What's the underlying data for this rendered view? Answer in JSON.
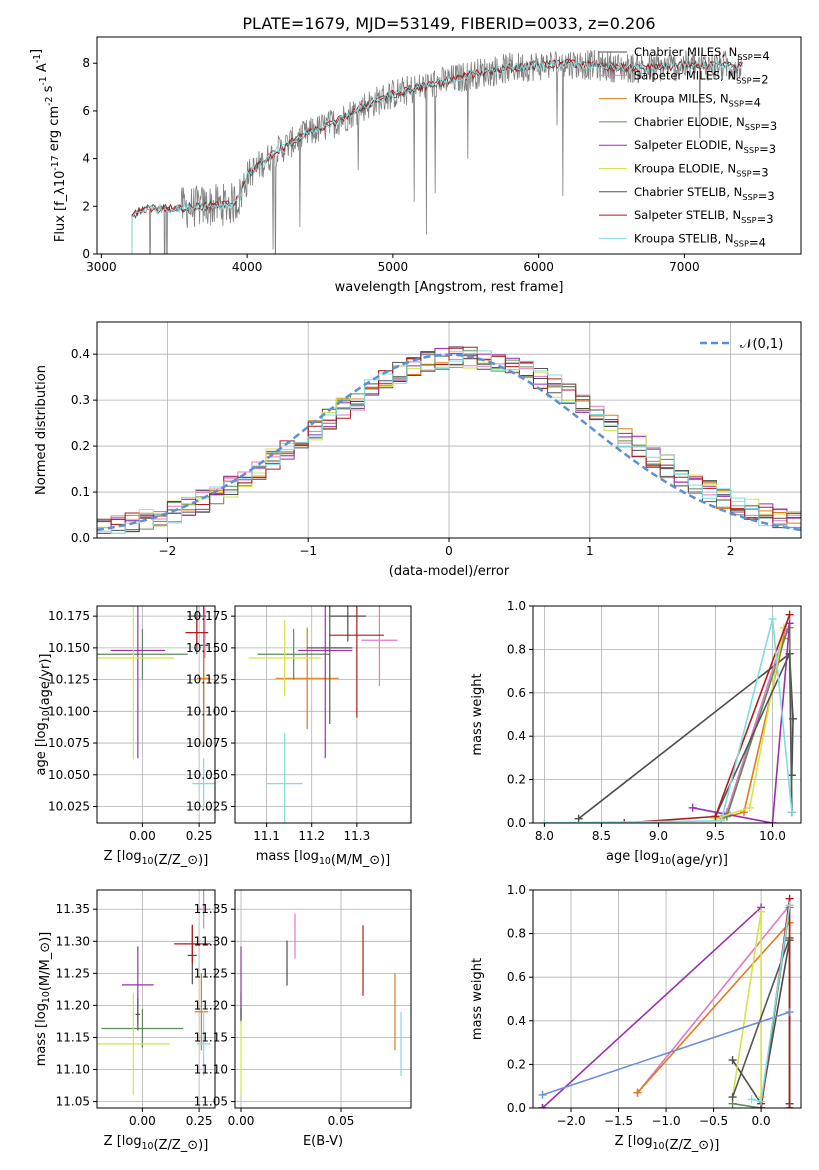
{
  "figure": {
    "title": "PLATE=1679, MJD=53149, FIBERID=0033, z=0.206",
    "models": [
      {
        "name": "Chabrier MILES, N$_{SSP}$=4",
        "color": "#4c4c4c"
      },
      {
        "name": "Salpeter MILES, N$_{SSP}$=2",
        "color": "#e377c2"
      },
      {
        "name": "Kroupa MILES, N$_{SSP}$=4",
        "color": "#e07b1b"
      },
      {
        "name": "Chabrier ELODIE, N$_{SSP}$=3",
        "color": "#5d8a5d"
      },
      {
        "name": "Salpeter ELODIE, N$_{SSP}$=3",
        "color": "#9b2fae"
      },
      {
        "name": "Kroupa ELODIE, N$_{SSP}$=3",
        "color": "#d6e34a"
      },
      {
        "name": "Chabrier STELIB, N$_{SSP}$=3",
        "color": "#555555"
      },
      {
        "name": "Salpeter STELIB, N$_{SSP}$=3",
        "color": "#b01c1c"
      },
      {
        "name": "Kroupa STELIB, N$_{SSP}$=4",
        "color": "#7fdde0"
      }
    ]
  },
  "chart_data": [
    {
      "id": "spectrum",
      "type": "line",
      "xlabel": "wavelength [Angstrom, rest frame]",
      "ylabel": "Flux [f$_\\lambda$10$^{-17}$ erg cm$^{-2}$ s$^{-1}$ A$^{-1}$]",
      "xlim": [
        2970,
        7800
      ],
      "ylim": [
        0,
        9.1
      ],
      "xticks": [
        3000,
        4000,
        5000,
        6000,
        7000
      ],
      "yticks": [
        0,
        2,
        4,
        6,
        8
      ],
      "continuum": {
        "x": [
          3210,
          3300,
          3500,
          3700,
          3900,
          3950,
          4000,
          4200,
          4400,
          4600,
          4800,
          5000,
          5200,
          5400,
          5600,
          5800,
          6000,
          6200,
          6400,
          6600,
          6800,
          7000,
          7200,
          7400
        ],
        "y": [
          1.6,
          1.9,
          1.9,
          2.0,
          2.1,
          2.4,
          3.3,
          4.3,
          5.0,
          5.5,
          6.2,
          6.7,
          7.0,
          7.3,
          7.6,
          7.8,
          7.9,
          8.0,
          7.9,
          7.8,
          7.8,
          7.9,
          7.9,
          7.9
        ]
      },
      "data_color": "#808080"
    },
    {
      "id": "residuals",
      "type": "line",
      "xlabel": "(data-model)/error",
      "ylabel": "Normed distribution",
      "xlim": [
        -2.5,
        2.5
      ],
      "ylim": [
        0,
        0.47
      ],
      "xticks": [
        -2,
        -1,
        0,
        1,
        2
      ],
      "yticks": [
        0.0,
        0.1,
        0.2,
        0.3,
        0.4
      ],
      "reference": {
        "name": "$\\mathcal{N}(0,1)$",
        "mu": 0,
        "sigma": 1,
        "color": "#5b8fd6"
      },
      "grid": true
    },
    {
      "id": "age-vs-Z",
      "type": "scatter",
      "xlabel": "Z [log$_{10}$(Z/Z$_\\odot$)]",
      "ylabel": "age  [log$_{10}$($age/yr$)]",
      "xlim": [
        -0.2,
        0.32
      ],
      "ylim": [
        10.012,
        10.183
      ],
      "xticks": [
        0.0,
        0.25
      ],
      "yticks": [
        10.025,
        10.05,
        10.075,
        10.1,
        10.125,
        10.15,
        10.175
      ],
      "points": [
        {
          "model": 0,
          "x": 0.27,
          "y": 10.152,
          "xerr": 0.02,
          "yerr": 0.08
        },
        {
          "model": 1,
          "x": 0.275,
          "y": 10.162,
          "xerr": 0.01,
          "yerr": 0.02
        },
        {
          "model": 2,
          "x": 0.27,
          "y": 10.126,
          "xerr": 0.03,
          "yerr": 0.05
        },
        {
          "model": 3,
          "x": 0.0,
          "y": 10.145,
          "xerr": 0.2,
          "yerr": 0.02
        },
        {
          "model": 4,
          "x": -0.02,
          "y": 10.148,
          "xerr": 0.12,
          "yerr": 0.085
        },
        {
          "model": 5,
          "x": -0.04,
          "y": 10.142,
          "xerr": 0.18,
          "yerr": 0.08
        },
        {
          "model": 6,
          "x": 0.24,
          "y": 10.175,
          "xerr": 0.04,
          "yerr": 0.03
        },
        {
          "model": 7,
          "x": 0.24,
          "y": 10.162,
          "xerr": 0.05,
          "yerr": 0.01
        },
        {
          "model": 8,
          "x": 0.27,
          "y": 10.043,
          "xerr": 0.05,
          "yerr": 0.02
        }
      ]
    },
    {
      "id": "age-vs-mass",
      "type": "scatter",
      "xlabel": "mass [log$_{10}$($M/M_\\odot$)]",
      "ylabel": "",
      "xlim": [
        11.03,
        11.42
      ],
      "ylim": [
        10.012,
        10.183
      ],
      "xticks": [
        11.1,
        11.2,
        11.3
      ],
      "yticks": [
        10.025,
        10.05,
        10.075,
        10.1,
        10.125,
        10.15,
        10.175
      ],
      "points": [
        {
          "model": 0,
          "x": 11.28,
          "y": 10.175,
          "xerr": 0.04,
          "yerr": 0.02
        },
        {
          "model": 1,
          "x": 11.35,
          "y": 10.156,
          "xerr": 0.04,
          "yerr": 0.036
        },
        {
          "model": 2,
          "x": 11.19,
          "y": 10.126,
          "xerr": 0.07,
          "yerr": 0.04
        },
        {
          "model": 3,
          "x": 11.16,
          "y": 10.145,
          "xerr": 0.08,
          "yerr": 0.02
        },
        {
          "model": 4,
          "x": 11.23,
          "y": 10.148,
          "xerr": 0.06,
          "yerr": 0.085
        },
        {
          "model": 5,
          "x": 11.14,
          "y": 10.142,
          "xerr": 0.08,
          "yerr": 0.03
        },
        {
          "model": 6,
          "x": 11.24,
          "y": 10.15,
          "xerr": 0.05,
          "yerr": 0.06
        },
        {
          "model": 7,
          "x": 11.3,
          "y": 10.16,
          "xerr": 0.06,
          "yerr": 0.065
        },
        {
          "model": 8,
          "x": 11.14,
          "y": 10.043,
          "xerr": 0.04,
          "yerr": 0.04
        }
      ]
    },
    {
      "id": "weight-vs-age",
      "type": "line",
      "xlabel": "age  [log$_{10}$($age/yr$)]",
      "ylabel": "mass weight",
      "xlim": [
        7.9,
        10.25
      ],
      "ylim": [
        0,
        1.0
      ],
      "xticks": [
        8.0,
        8.5,
        9.0,
        9.5,
        10.0
      ],
      "yticks": [
        0.0,
        0.2,
        0.4,
        0.6,
        0.8,
        1.0
      ],
      "grid": true,
      "series": [
        {
          "model": 0,
          "x": [
            8.3,
            10.15,
            10.18,
            10.17
          ],
          "y": [
            0.02,
            0.78,
            0.48,
            0.22
          ]
        },
        {
          "model": 1,
          "x": [
            9.6,
            10.12
          ],
          "y": [
            0.05,
            0.9
          ]
        },
        {
          "model": 2,
          "x": [
            9.55,
            9.75,
            10.1,
            10.15
          ],
          "y": [
            0.02,
            0.05,
            0.85,
            0.9
          ]
        },
        {
          "model": 3,
          "x": [
            9.6,
            10.15,
            10.17
          ],
          "y": [
            0.03,
            0.92,
            0.05
          ]
        },
        {
          "model": 4,
          "x": [
            9.3,
            10.0,
            10.15
          ],
          "y": [
            0.07,
            0.0,
            0.92
          ]
        },
        {
          "model": 5,
          "x": [
            9.5,
            9.8,
            10.1
          ],
          "y": [
            0.02,
            0.07,
            0.9
          ]
        },
        {
          "model": 6,
          "x": [
            9.5,
            10.15,
            10.17
          ],
          "y": [
            0.03,
            0.78,
            0.05
          ]
        },
        {
          "model": 7,
          "x": [
            8.7,
            9.5,
            10.15
          ],
          "y": [
            0.0,
            0.03,
            0.96
          ]
        },
        {
          "model": 8,
          "x": [
            8.0,
            9.55,
            10.0,
            10.17
          ],
          "y": [
            0.0,
            0.01,
            0.94,
            0.05
          ]
        }
      ]
    },
    {
      "id": "mass-vs-Z",
      "type": "scatter",
      "xlabel": "Z [log$_{10}$(Z/Z$_\\odot$)]",
      "ylabel": "mass [log$_{10}$($M/M_\\odot$)]",
      "xlim": [
        -0.2,
        0.32
      ],
      "ylim": [
        11.04,
        11.38
      ],
      "xticks": [
        0.0,
        0.25
      ],
      "yticks": [
        11.05,
        11.1,
        11.15,
        11.2,
        11.25,
        11.3,
        11.35
      ],
      "points": [
        {
          "model": 0,
          "x": 0.22,
          "y": 11.278,
          "xerr": 0.02,
          "yerr": 0.045
        },
        {
          "model": 1,
          "x": 0.27,
          "y": 11.35,
          "xerr": 0.03,
          "yerr": 0.03
        },
        {
          "model": 2,
          "x": 0.26,
          "y": 11.19,
          "xerr": 0.03,
          "yerr": 0.06
        },
        {
          "model": 3,
          "x": 0.0,
          "y": 11.164,
          "xerr": 0.18,
          "yerr": 0.03
        },
        {
          "model": 4,
          "x": -0.02,
          "y": 11.232,
          "xerr": 0.07,
          "yerr": 0.06
        },
        {
          "model": 5,
          "x": -0.04,
          "y": 11.14,
          "xerr": 0.16,
          "yerr": 0.08
        },
        {
          "model": 6,
          "x": -0.02,
          "y": 11.186,
          "xerr": 0.01,
          "yerr": 0.025
        },
        {
          "model": 7,
          "x": 0.22,
          "y": 11.296,
          "xerr": 0.08,
          "yerr": 0.03
        },
        {
          "model": 8,
          "x": 0.27,
          "y": 11.14,
          "xerr": 0.03,
          "yerr": 0.05
        }
      ]
    },
    {
      "id": "mass-vs-ebv",
      "type": "scatter",
      "xlabel": "E(B-V)",
      "ylabel": "",
      "xlim": [
        -0.003,
        0.085
      ],
      "ylim": [
        11.04,
        11.38
      ],
      "xticks": [
        0.0,
        0.05
      ],
      "yticks": [
        11.05,
        11.1,
        11.15,
        11.2,
        11.25,
        11.3,
        11.35
      ],
      "points": [
        {
          "model": 0,
          "x": 0.023,
          "y": 11.266,
          "xerr": 0,
          "yerr": 0.035
        },
        {
          "model": 1,
          "x": 0.027,
          "y": 11.308,
          "xerr": 0,
          "yerr": 0.035
        },
        {
          "model": 2,
          "x": 0.077,
          "y": 11.19,
          "xerr": 0,
          "yerr": 0.06
        },
        {
          "model": 3,
          "x": 0.0,
          "y": 11.2,
          "xerr": 0,
          "yerr": 0.02
        },
        {
          "model": 4,
          "x": 0.0,
          "y": 11.232,
          "xerr": 0,
          "yerr": 0.06
        },
        {
          "model": 5,
          "x": 0.0,
          "y": 11.12,
          "xerr": 0,
          "yerr": 0.06
        },
        {
          "model": 6,
          "x": 0.0,
          "y": 11.186,
          "xerr": 0,
          "yerr": 0.01
        },
        {
          "model": 7,
          "x": 0.061,
          "y": 11.27,
          "xerr": 0,
          "yerr": 0.055
        },
        {
          "model": 8,
          "x": 0.08,
          "y": 11.14,
          "xerr": 0,
          "yerr": 0.05
        }
      ]
    },
    {
      "id": "weight-vs-Z",
      "type": "line",
      "xlabel": "Z [log$_{10}$(Z/Z$_\\odot$)]",
      "ylabel": "mass weight",
      "xlim": [
        -2.4,
        0.42
      ],
      "ylim": [
        0,
        1.0
      ],
      "xticks": [
        -2.0,
        -1.5,
        -1.0,
        -0.5,
        0.0
      ],
      "yticks": [
        0.0,
        0.2,
        0.4,
        0.6,
        0.8,
        1.0
      ],
      "grid": true,
      "series": [
        {
          "model": 0,
          "x": [
            -0.3,
            0.0,
            0.3,
            0.3
          ],
          "y": [
            0.22,
            0.02,
            0.77,
            0.02
          ]
        },
        {
          "model": 1,
          "x": [
            -1.3,
            0.3
          ],
          "y": [
            0.07,
            0.93
          ]
        },
        {
          "model": 2,
          "x": [
            -1.3,
            0.3,
            0.3
          ],
          "y": [
            0.07,
            0.85,
            0.0
          ]
        },
        {
          "model": 3,
          "x": [
            -0.3,
            0.0,
            0.3
          ],
          "y": [
            0.02,
            0.0,
            0.92
          ]
        },
        {
          "model": 4,
          "x": [
            -2.3,
            0.0,
            -2.3
          ],
          "y": [
            0.0,
            0.92,
            0.0
          ]
        },
        {
          "model": 5,
          "x": [
            -0.3,
            0.0,
            0.0
          ],
          "y": [
            0.05,
            0.9,
            0.05
          ]
        },
        {
          "model": 6,
          "x": [
            -0.3,
            0.3,
            0.3
          ],
          "y": [
            0.05,
            0.78,
            0.02
          ]
        },
        {
          "model": 7,
          "x": [
            0.0,
            0.3,
            0.3
          ],
          "y": [
            0.0,
            0.96,
            0.0
          ]
        },
        {
          "model": 8,
          "x": [
            -2.3,
            0.3
          ],
          "y": [
            0.06,
            0.44
          ],
          "color": "#6a8fd8"
        },
        {
          "model": 8,
          "x": [
            -0.1,
            0.0,
            0.3
          ],
          "y": [
            0.04,
            0.03,
            0.93
          ]
        }
      ]
    }
  ]
}
